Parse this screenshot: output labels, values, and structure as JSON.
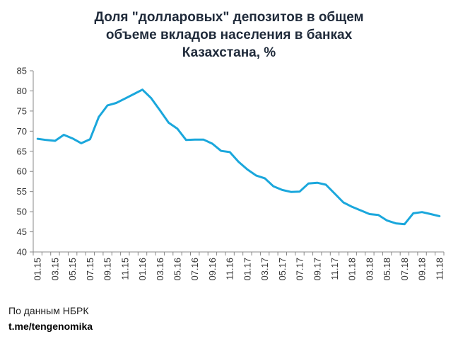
{
  "title_lines": [
    "Доля \"долларовых\" депозитов в общем",
    "объеме вкладов населения в банках",
    "Казахстана, %"
  ],
  "footer": {
    "source": "По данным НБРК",
    "channel": "t.me/tengenomika"
  },
  "colors": {
    "series": "#1aa7dc",
    "axis": "#888888"
  },
  "chart_data": {
    "type": "line",
    "ylim": [
      40,
      85
    ],
    "yticks": [
      40,
      45,
      50,
      55,
      60,
      65,
      70,
      75,
      80,
      85
    ],
    "grid": false,
    "xtick_labels": [
      "01.15",
      "03.15",
      "05.15",
      "07.15",
      "09.15",
      "11.15",
      "01.16",
      "03.16",
      "05.16",
      "07.16",
      "09.16",
      "11.16",
      "01.17",
      "03.17",
      "05.17",
      "07.17",
      "09.17",
      "11.17",
      "01.18",
      "03.18",
      "05.18",
      "07.18",
      "09.18",
      "11.18"
    ],
    "x": [
      "01.15",
      "02.15",
      "03.15",
      "04.15",
      "05.15",
      "06.15",
      "07.15",
      "08.15",
      "09.15",
      "10.15",
      "11.15",
      "12.15",
      "01.16",
      "02.16",
      "03.16",
      "04.16",
      "05.16",
      "06.16",
      "07.16",
      "08.16",
      "09.16",
      "10.16",
      "11.16",
      "12.16",
      "01.17",
      "02.17",
      "03.17",
      "04.17",
      "05.17",
      "06.17",
      "07.17",
      "08.17",
      "09.17",
      "10.17",
      "11.17",
      "12.17",
      "01.18",
      "02.18",
      "03.18",
      "04.18",
      "05.18",
      "06.18",
      "07.18",
      "08.18",
      "09.18",
      "10.18",
      "11.18"
    ],
    "series": [
      {
        "values": [
          68.1,
          67.8,
          67.6,
          69.1,
          68.2,
          67.0,
          68.0,
          73.5,
          76.4,
          77.0,
          78.1,
          79.2,
          80.3,
          78.2,
          75.2,
          72.1,
          70.6,
          67.8,
          67.9,
          67.9,
          66.9,
          65.1,
          64.8,
          62.4,
          60.5,
          59.0,
          58.3,
          56.3,
          55.4,
          54.9,
          55.0,
          57.0,
          57.2,
          56.7,
          54.5,
          52.3,
          51.2,
          50.3,
          49.4,
          49.2,
          47.8,
          47.1,
          46.9,
          49.6,
          49.9,
          49.4,
          48.9
        ]
      }
    ]
  }
}
